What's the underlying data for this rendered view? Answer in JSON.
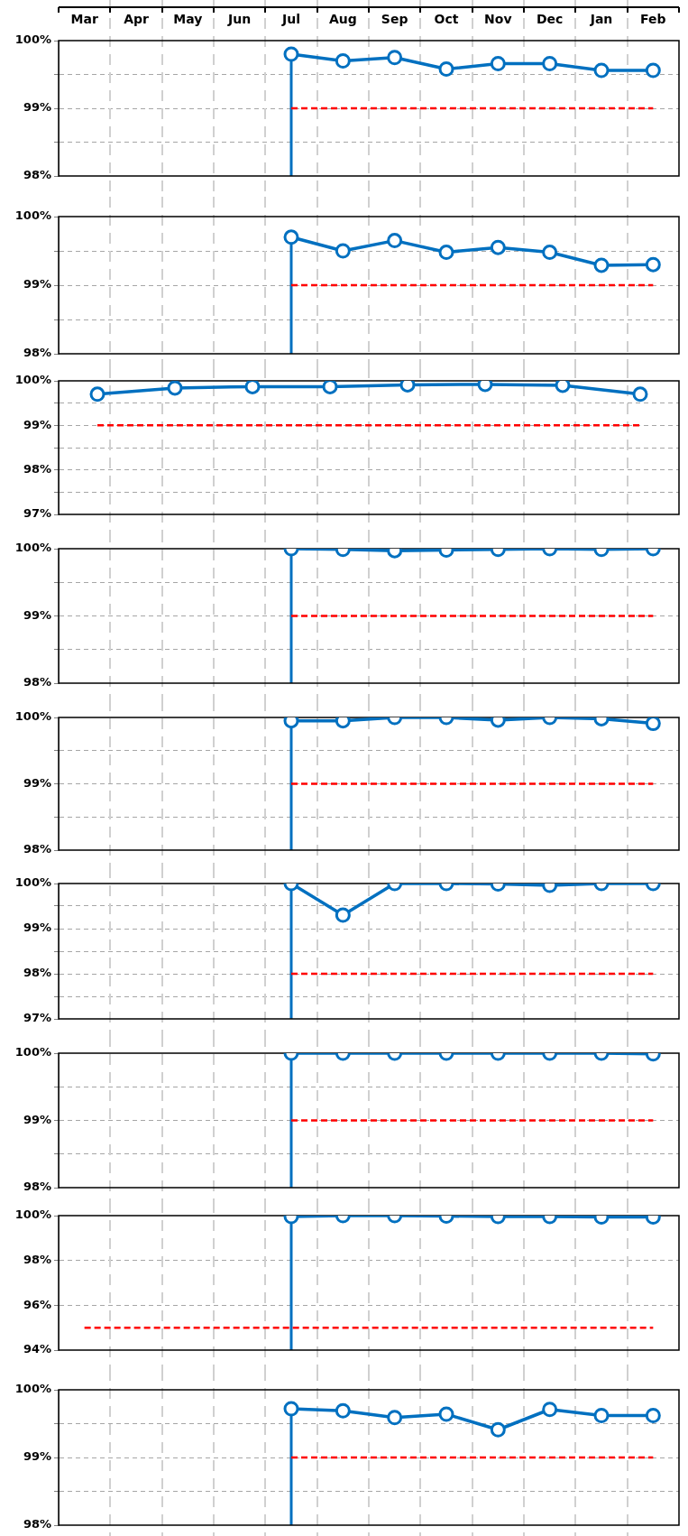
{
  "chart_data": [
    {
      "type": "line",
      "categories": [
        "Mar",
        "Apr",
        "May",
        "Jun",
        "Jul",
        "Aug",
        "Sep",
        "Oct",
        "Nov",
        "Dec",
        "Jan",
        "Feb"
      ],
      "ylim": [
        98,
        100
      ],
      "yticks": [
        {
          "value": 98,
          "label": "98%"
        },
        {
          "value": 98.5,
          "label": null
        },
        {
          "value": 99,
          "label": "99%"
        },
        {
          "value": 99.5,
          "label": null
        },
        {
          "value": 100,
          "label": "100%"
        }
      ],
      "grid": true,
      "marker": "circle",
      "line_style": "solid",
      "ref_lines": [
        {
          "axis": "x",
          "value": "Jul",
          "color": "#0070c0"
        }
      ],
      "series": [
        {
          "color": "#0070c0",
          "values": [
            null,
            null,
            null,
            null,
            99.8,
            99.7,
            99.75,
            99.58,
            99.66,
            99.66,
            99.56,
            99.56
          ]
        },
        {
          "color": "#ff0000",
          "marker": "none",
          "line_style": "dashed",
          "values": [
            null,
            null,
            null,
            null,
            99,
            99,
            99,
            99,
            99,
            99,
            99,
            99
          ]
        }
      ]
    },
    {
      "type": "line",
      "categories": [
        "Mar",
        "Apr",
        "May",
        "Jun",
        "Jul",
        "Aug",
        "Sep",
        "Oct",
        "Nov",
        "Dec",
        "Jan",
        "Feb"
      ],
      "tick_labels": "y",
      "ylim": [
        98,
        100
      ],
      "yticks": [
        {
          "value": 98,
          "label": "98%"
        },
        {
          "value": 98.5,
          "label": null
        },
        {
          "value": 99,
          "label": "99%"
        },
        {
          "value": 99.5,
          "label": null
        },
        {
          "value": 100,
          "label": "100%"
        }
      ],
      "grid": true,
      "marker": "circle",
      "line_style": "solid",
      "ref_lines": [
        {
          "axis": "x",
          "value": "Jul",
          "color": "#0070c0"
        }
      ],
      "series": [
        {
          "color": "#0070c0",
          "values": [
            null,
            null,
            null,
            null,
            99.7,
            99.5,
            99.65,
            99.48,
            99.55,
            99.48,
            99.29,
            99.3
          ]
        },
        {
          "color": "#ff0000",
          "marker": "none",
          "line_style": "dashed",
          "values": [
            null,
            null,
            null,
            null,
            99,
            99,
            99,
            99,
            99,
            99,
            99,
            99
          ]
        }
      ]
    },
    {
      "type": "line",
      "categories": [
        null,
        null,
        null,
        null,
        null,
        null,
        null,
        null
      ],
      "tick_labels": "y",
      "ylim": [
        97,
        100
      ],
      "yticks": [
        {
          "value": 97,
          "label": "97%"
        },
        {
          "value": 97.5,
          "label": null
        },
        {
          "value": 98,
          "label": "98%"
        },
        {
          "value": 98.5,
          "label": null
        },
        {
          "value": 99,
          "label": "99%"
        },
        {
          "value": 99.5,
          "label": null
        },
        {
          "value": 100,
          "label": "100%"
        }
      ],
      "grid": true,
      "marker": "circle",
      "line_style": "solid",
      "series": [
        {
          "color": "#0070c0",
          "values": [
            99.7,
            99.84,
            99.87,
            99.87,
            99.91,
            99.92,
            99.9,
            99.7
          ]
        },
        {
          "color": "#ff0000",
          "marker": "none",
          "line_style": "dashed",
          "values": [
            99,
            99,
            99,
            99,
            99,
            99,
            99,
            99
          ]
        }
      ]
    },
    {
      "type": "line",
      "categories": [
        "Mar",
        "Apr",
        "May",
        "Jun",
        "Jul",
        "Aug",
        "Sep",
        "Oct",
        "Nov",
        "Dec",
        "Jan",
        "Feb"
      ],
      "tick_labels": "y",
      "ylim": [
        98,
        100
      ],
      "yticks": [
        {
          "value": 98,
          "label": "98%"
        },
        {
          "value": 98.5,
          "label": null
        },
        {
          "value": 99,
          "label": "99%"
        },
        {
          "value": 99.5,
          "label": null
        },
        {
          "value": 100,
          "label": "100%"
        }
      ],
      "grid": true,
      "marker": "circle",
      "line_style": "solid",
      "ref_lines": [
        {
          "axis": "x",
          "value": "Jul",
          "color": "#0070c0"
        }
      ],
      "series": [
        {
          "color": "#0070c0",
          "values": [
            null,
            null,
            null,
            null,
            100,
            99.99,
            99.97,
            99.98,
            99.99,
            100,
            99.99,
            100
          ]
        },
        {
          "color": "#ff0000",
          "marker": "none",
          "line_style": "dashed",
          "values": [
            null,
            null,
            null,
            null,
            99,
            99,
            99,
            99,
            99,
            99,
            99,
            99
          ]
        }
      ]
    },
    {
      "type": "line",
      "categories": [
        "Mar",
        "Apr",
        "May",
        "Jun",
        "Jul",
        "Aug",
        "Sep",
        "Oct",
        "Nov",
        "Dec",
        "Jan",
        "Feb"
      ],
      "tick_labels": "y",
      "ylim": [
        98,
        100
      ],
      "yticks": [
        {
          "value": 98,
          "label": "98%"
        },
        {
          "value": 98.5,
          "label": null
        },
        {
          "value": 99,
          "label": "99%"
        },
        {
          "value": 99.5,
          "label": null
        },
        {
          "value": 100,
          "label": "100%"
        }
      ],
      "grid": true,
      "marker": "circle",
      "line_style": "solid",
      "ref_lines": [
        {
          "axis": "x",
          "value": "Jul",
          "color": "#0070c0"
        }
      ],
      "series": [
        {
          "color": "#0070c0",
          "values": [
            null,
            null,
            null,
            null,
            99.95,
            99.95,
            100,
            100,
            99.96,
            100,
            99.98,
            99.91
          ]
        },
        {
          "color": "#ff0000",
          "marker": "none",
          "line_style": "dashed",
          "values": [
            null,
            null,
            null,
            null,
            99,
            99,
            99,
            99,
            99,
            99,
            99,
            99
          ]
        }
      ]
    },
    {
      "type": "line",
      "categories": [
        "Mar",
        "Apr",
        "May",
        "Jun",
        "Jul",
        "Aug",
        "Sep",
        "Oct",
        "Nov",
        "Dec",
        "Jan",
        "Feb"
      ],
      "tick_labels": "y",
      "ylim": [
        97,
        100
      ],
      "yticks": [
        {
          "value": 97,
          "label": "97%"
        },
        {
          "value": 97.5,
          "label": null
        },
        {
          "value": 98,
          "label": "98%"
        },
        {
          "value": 98.5,
          "label": null
        },
        {
          "value": 99,
          "label": "99%"
        },
        {
          "value": 99.5,
          "label": null
        },
        {
          "value": 100,
          "label": "100%"
        }
      ],
      "grid": true,
      "marker": "circle",
      "line_style": "solid",
      "ref_lines": [
        {
          "axis": "x",
          "value": "Jul",
          "color": "#0070c0"
        }
      ],
      "series": [
        {
          "color": "#0070c0",
          "values": [
            null,
            null,
            null,
            null,
            100,
            99.3,
            100,
            100,
            99.99,
            99.96,
            100,
            100
          ]
        },
        {
          "color": "#ff0000",
          "marker": "none",
          "line_style": "dashed",
          "values": [
            null,
            null,
            null,
            null,
            98,
            98,
            98,
            98,
            98,
            98,
            98,
            98
          ]
        }
      ]
    },
    {
      "type": "line",
      "categories": [
        "Mar",
        "Apr",
        "May",
        "Jun",
        "Jul",
        "Aug",
        "Sep",
        "Oct",
        "Nov",
        "Dec",
        "Jan",
        "Feb"
      ],
      "tick_labels": "y",
      "ylim": [
        98,
        100
      ],
      "yticks": [
        {
          "value": 98,
          "label": "98%"
        },
        {
          "value": 98.5,
          "label": null
        },
        {
          "value": 99,
          "label": "99%"
        },
        {
          "value": 99.5,
          "label": null
        },
        {
          "value": 100,
          "label": "100%"
        }
      ],
      "grid": true,
      "marker": "circle",
      "line_style": "solid",
      "ref_lines": [
        {
          "axis": "x",
          "value": "Jul",
          "color": "#0070c0"
        }
      ],
      "series": [
        {
          "color": "#0070c0",
          "values": [
            null,
            null,
            null,
            null,
            100,
            100,
            100,
            100,
            100,
            100,
            100,
            99.99
          ]
        },
        {
          "color": "#ff0000",
          "marker": "none",
          "line_style": "dashed",
          "values": [
            null,
            null,
            null,
            null,
            99,
            99,
            99,
            99,
            99,
            99,
            99,
            99
          ]
        }
      ]
    },
    {
      "type": "line",
      "categories": [
        "Mar",
        "Apr",
        "May",
        "Jun",
        "Jul",
        "Aug",
        "Sep",
        "Oct",
        "Nov",
        "Dec",
        "Jan",
        "Feb"
      ],
      "tick_labels": "y",
      "ylim": [
        94,
        100
      ],
      "yticks": [
        {
          "value": 94,
          "label": "94%"
        },
        {
          "value": 96,
          "label": "96%"
        },
        {
          "value": 98,
          "label": "98%"
        },
        {
          "value": 100,
          "label": "100%"
        }
      ],
      "grid": true,
      "marker": "circle",
      "line_style": "solid",
      "ref_lines": [
        {
          "axis": "x",
          "value": "Jul",
          "color": "#0070c0"
        }
      ],
      "series": [
        {
          "color": "#0070c0",
          "values": [
            null,
            null,
            null,
            null,
            99.96,
            100,
            100,
            99.98,
            99.96,
            99.96,
            99.94,
            99.94
          ]
        },
        {
          "color": "#ff0000",
          "marker": "none",
          "line_style": "dashed",
          "values": [
            95,
            95,
            95,
            95,
            95,
            95,
            95,
            95,
            95,
            95,
            95,
            95
          ]
        }
      ]
    },
    {
      "type": "line",
      "categories": [
        "Mar",
        "Apr",
        "May",
        "Jun",
        "Jul",
        "Aug",
        "Sep",
        "Oct",
        "Nov",
        "Dec",
        "Jan",
        "Feb"
      ],
      "tick_labels": "y",
      "ylim": [
        98,
        100
      ],
      "yticks": [
        {
          "value": 98,
          "label": "98%"
        },
        {
          "value": 98.5,
          "label": null
        },
        {
          "value": 99,
          "label": "99%"
        },
        {
          "value": 99.5,
          "label": null
        },
        {
          "value": 100,
          "label": "100%"
        }
      ],
      "grid": true,
      "marker": "circle",
      "line_style": "solid",
      "ref_lines": [
        {
          "axis": "x",
          "value": "Jul",
          "color": "#0070c0"
        }
      ],
      "series": [
        {
          "color": "#0070c0",
          "values": [
            null,
            null,
            null,
            null,
            99.72,
            99.69,
            99.59,
            99.64,
            99.41,
            99.71,
            99.62,
            99.62
          ]
        },
        {
          "color": "#ff0000",
          "marker": "none",
          "line_style": "dashed",
          "values": [
            null,
            null,
            null,
            null,
            99,
            99,
            99,
            99,
            99,
            99,
            99,
            99
          ]
        }
      ]
    }
  ]
}
